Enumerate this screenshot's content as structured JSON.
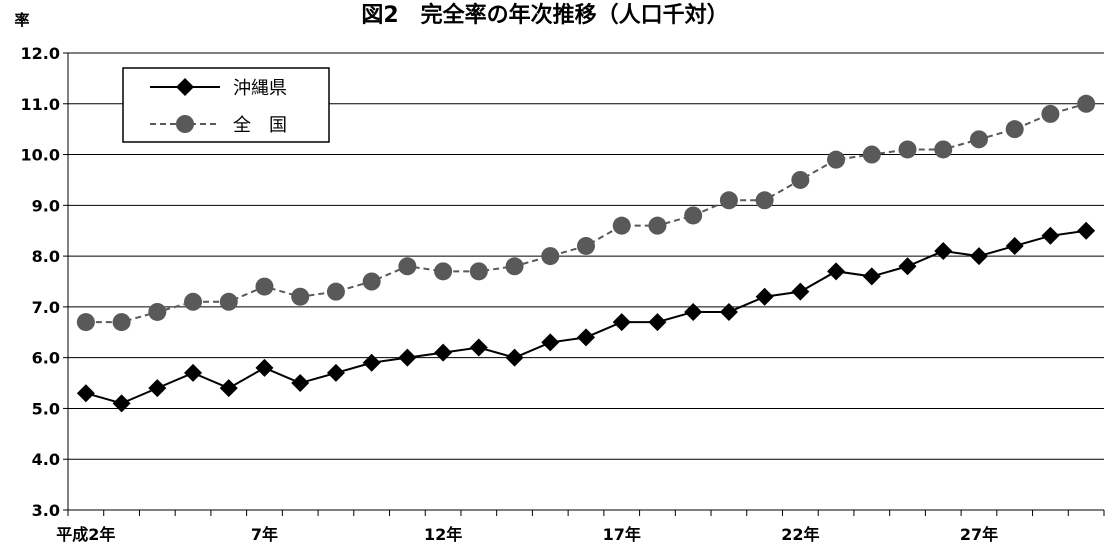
{
  "chart_data": {
    "type": "line",
    "title": "図2　完全率の年次推移（人口千対）",
    "ylabel": "率",
    "xlabel": "",
    "ylim": [
      3.0,
      12.0
    ],
    "yticks": [
      "3.0",
      "4.0",
      "5.0",
      "6.0",
      "7.0",
      "8.0",
      "9.0",
      "10.0",
      "11.0",
      "12.0"
    ],
    "x": [
      2,
      3,
      4,
      5,
      6,
      7,
      8,
      9,
      10,
      11,
      12,
      13,
      14,
      15,
      16,
      17,
      18,
      19,
      20,
      21,
      22,
      23,
      24,
      25,
      26,
      27,
      28,
      29,
      30
    ],
    "xticklabels": [
      {
        "x": 2,
        "label": "平成2年"
      },
      {
        "x": 7,
        "label": "7年"
      },
      {
        "x": 12,
        "label": "12年"
      },
      {
        "x": 17,
        "label": "17年"
      },
      {
        "x": 22,
        "label": "22年"
      },
      {
        "x": 27,
        "label": "27年"
      }
    ],
    "grid": true,
    "legend_position": "top-left",
    "series": [
      {
        "name": "沖縄県",
        "marker": "diamond",
        "line": "solid",
        "color": "#000000",
        "values": [
          5.3,
          5.1,
          5.4,
          5.7,
          5.4,
          5.8,
          5.5,
          5.7,
          5.9,
          6.0,
          6.1,
          6.2,
          6.0,
          6.3,
          6.4,
          6.7,
          6.7,
          6.9,
          6.9,
          7.2,
          7.3,
          7.7,
          7.6,
          7.8,
          8.1,
          8.0,
          8.2,
          8.4,
          8.5
        ]
      },
      {
        "name": "全　国",
        "marker": "circle",
        "line": "dashed",
        "color": "#595959",
        "values": [
          6.7,
          6.7,
          6.9,
          7.1,
          7.1,
          7.4,
          7.2,
          7.3,
          7.5,
          7.8,
          7.7,
          7.7,
          7.8,
          8.0,
          8.2,
          8.6,
          8.6,
          8.8,
          9.1,
          9.1,
          9.5,
          9.9,
          10.0,
          10.1,
          10.1,
          10.3,
          10.5,
          10.8,
          11.0
        ]
      }
    ]
  }
}
